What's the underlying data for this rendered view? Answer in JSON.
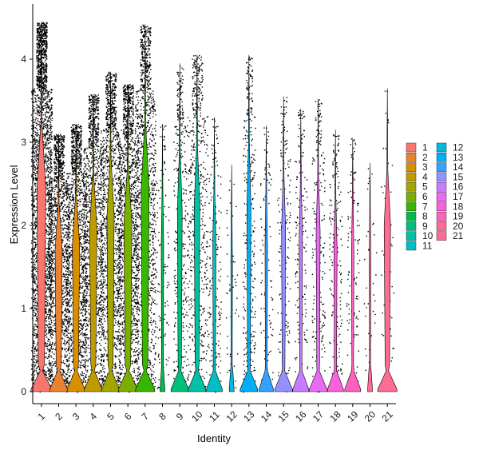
{
  "chart_data": {
    "type": "violin",
    "xlabel": "Identity",
    "ylabel": "Expression Level",
    "ylim": [
      -0.2,
      4.65
    ],
    "yticks": [
      0,
      1,
      2,
      3,
      4
    ],
    "categories": [
      "1",
      "2",
      "3",
      "4",
      "5",
      "6",
      "7",
      "8",
      "9",
      "10",
      "11",
      "12",
      "13",
      "14",
      "15",
      "16",
      "17",
      "18",
      "19",
      "20",
      "21"
    ],
    "colors": [
      "#F8766D",
      "#EA8331",
      "#D89000",
      "#C09B00",
      "#A3A500",
      "#7CAE00",
      "#39B600",
      "#00BB4E",
      "#00BF7D",
      "#00C1A3",
      "#00BFC4",
      "#00BAE0",
      "#00B0F6",
      "#35A2FF",
      "#9590FF",
      "#C77CFF",
      "#E76BF3",
      "#FA62DB",
      "#FF62BC",
      "#FF6A98",
      "#FF6C91"
    ],
    "max_values": [
      4.45,
      3.1,
      3.22,
      3.58,
      3.85,
      3.7,
      4.42,
      3.22,
      3.95,
      4.05,
      3.3,
      2.73,
      4.05,
      3.2,
      3.55,
      3.4,
      3.52,
      3.15,
      3.05,
      2.75,
      3.65
    ],
    "legend": {
      "position": "right",
      "columns": 2
    },
    "grid": false
  }
}
